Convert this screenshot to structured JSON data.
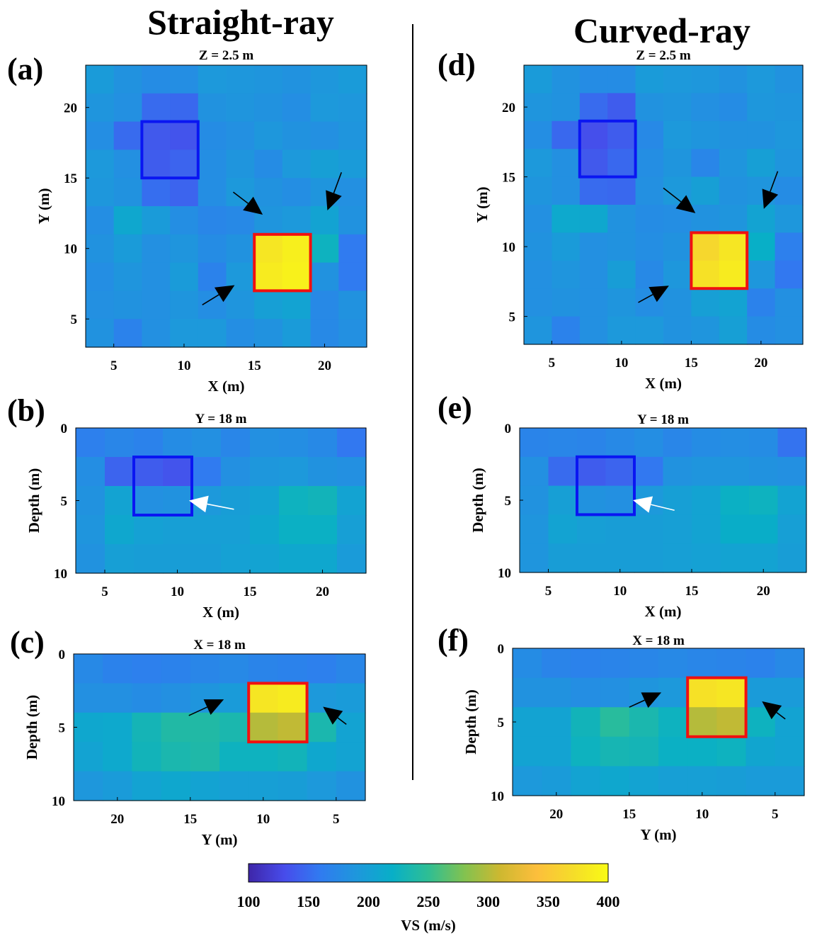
{
  "column_titles": {
    "left": "Straight-ray",
    "right": "Curved-ray"
  },
  "colorbar": {
    "label": "VS (m/s)",
    "min": 100,
    "max": 400,
    "ticks": [
      "100",
      "150",
      "200",
      "250",
      "300",
      "350",
      "400"
    ],
    "colormap": "parula"
  },
  "chart_data": [
    {
      "id": "a",
      "panel_label": "(a)",
      "type": "heatmap",
      "title": "Z =  2.5 m",
      "xlabel": "X (m)",
      "ylabel": "Y (m)",
      "xlim": [
        3,
        23
      ],
      "ylim": [
        3,
        23
      ],
      "y_reversed": false,
      "xticks": [
        5,
        10,
        15,
        20
      ],
      "yticks": [
        5,
        10,
        15,
        20
      ],
      "x_edges": [
        3,
        5,
        7,
        9,
        11,
        13,
        15,
        17,
        19,
        21,
        23
      ],
      "y_edges": [
        23,
        21,
        19,
        17,
        15,
        13,
        11,
        9,
        7,
        5,
        3
      ],
      "values": [
        [
          195,
          185,
          178,
          180,
          192,
          190,
          188,
          185,
          190,
          195
        ],
        [
          188,
          182,
          150,
          148,
          185,
          188,
          185,
          180,
          192,
          190
        ],
        [
          180,
          150,
          138,
          135,
          178,
          182,
          190,
          185,
          182,
          188
        ],
        [
          192,
          182,
          140,
          145,
          180,
          188,
          178,
          192,
          200,
          195
        ],
        [
          190,
          185,
          152,
          145,
          180,
          192,
          185,
          180,
          188,
          182
        ],
        [
          180,
          210,
          195,
          180,
          172,
          175,
          188,
          192,
          205,
          185
        ],
        [
          185,
          195,
          182,
          188,
          178,
          185,
          380,
          388,
          225,
          160
        ],
        [
          180,
          188,
          182,
          195,
          168,
          192,
          385,
          390,
          185,
          160
        ],
        [
          182,
          185,
          182,
          188,
          180,
          188,
          200,
          205,
          175,
          185
        ],
        [
          185,
          168,
          182,
          192,
          192,
          180,
          185,
          195,
          175,
          182
        ]
      ],
      "boxes": [
        {
          "color": "#0a16f2",
          "x": [
            7,
            11
          ],
          "y": [
            15,
            19
          ]
        },
        {
          "color": "#f01010",
          "x": [
            15,
            19
          ],
          "y": [
            7,
            11
          ]
        }
      ],
      "arrows": [
        {
          "color": "#000000",
          "from": [
            13.5,
            14.0
          ],
          "to": [
            15.6,
            12.4
          ]
        },
        {
          "color": "#000000",
          "from": [
            21.2,
            15.4
          ],
          "to": [
            20.2,
            12.7
          ]
        },
        {
          "color": "#000000",
          "from": [
            11.3,
            6.0
          ],
          "to": [
            13.6,
            7.4
          ]
        }
      ]
    },
    {
      "id": "b",
      "panel_label": "(b)",
      "type": "heatmap",
      "title": "Y = 18 m",
      "xlabel": "X (m)",
      "ylabel": "Depth (m)",
      "xlim": [
        3,
        23
      ],
      "ylim": [
        0,
        10
      ],
      "y_reversed": true,
      "xticks": [
        5,
        10,
        15,
        20
      ],
      "yticks": [
        0,
        5,
        10
      ],
      "x_edges": [
        3,
        5,
        7,
        9,
        11,
        13,
        15,
        17,
        19,
        21,
        23
      ],
      "y_edges": [
        0,
        2,
        4,
        6,
        8,
        10
      ],
      "values": [
        [
          165,
          172,
          168,
          178,
          182,
          172,
          182,
          180,
          175,
          158
        ],
        [
          180,
          145,
          140,
          135,
          160,
          182,
          190,
          192,
          185,
          182
        ],
        [
          185,
          205,
          182,
          185,
          192,
          198,
          205,
          225,
          228,
          205
        ],
        [
          188,
          210,
          202,
          200,
          200,
          200,
          210,
          222,
          222,
          200
        ],
        [
          185,
          200,
          198,
          198,
          198,
          202,
          205,
          210,
          210,
          195
        ]
      ],
      "boxes": [
        {
          "color": "#0a16f2",
          "x": [
            7,
            11
          ],
          "y": [
            2,
            6
          ]
        }
      ],
      "arrows": [
        {
          "color": "#ffffff",
          "from": [
            13.9,
            5.6
          ],
          "to": [
            10.8,
            5.0
          ]
        }
      ]
    },
    {
      "id": "c",
      "panel_label": "(c)",
      "type": "heatmap",
      "title": "X = 18 m",
      "xlabel": "Y (m)",
      "ylabel": "Depth (m)",
      "xlim": [
        23,
        3
      ],
      "ylim": [
        0,
        10
      ],
      "y_reversed": true,
      "xticks": [
        20,
        15,
        10,
        5
      ],
      "yticks": [
        0,
        5,
        10
      ],
      "x_edges": [
        23,
        21,
        19,
        17,
        15,
        13,
        11,
        9,
        7,
        5,
        3
      ],
      "y_edges": [
        0,
        2,
        4,
        6,
        8,
        10
      ],
      "values": [
        [
          175,
          168,
          165,
          168,
          172,
          175,
          170,
          168,
          165,
          172
        ],
        [
          182,
          182,
          178,
          182,
          188,
          195,
          380,
          385,
          192,
          195
        ],
        [
          210,
          212,
          230,
          240,
          240,
          235,
          300,
          305,
          235,
          205
        ],
        [
          205,
          212,
          228,
          235,
          238,
          225,
          225,
          228,
          210,
          205
        ],
        [
          190,
          195,
          205,
          210,
          205,
          200,
          200,
          198,
          192,
          185
        ]
      ],
      "boxes": [
        {
          "color": "#f01010",
          "x": [
            11,
            7
          ],
          "y": [
            2,
            6
          ]
        }
      ],
      "arrows": [
        {
          "color": "#000000",
          "from": [
            15.1,
            4.2
          ],
          "to": [
            12.7,
            3.1
          ]
        },
        {
          "color": "#000000",
          "from": [
            4.3,
            4.8
          ],
          "to": [
            5.9,
            3.6
          ]
        }
      ]
    },
    {
      "id": "d",
      "panel_label": "(d)",
      "type": "heatmap",
      "title": "Z = 2.5 m",
      "xlabel": "X (m)",
      "ylabel": "Y (m)",
      "xlim": [
        3,
        23
      ],
      "ylim": [
        3,
        23
      ],
      "y_reversed": false,
      "xticks": [
        5,
        10,
        15,
        20
      ],
      "yticks": [
        5,
        10,
        15,
        20
      ],
      "x_edges": [
        3,
        5,
        7,
        9,
        11,
        13,
        15,
        17,
        19,
        21,
        23
      ],
      "y_edges": [
        23,
        21,
        19,
        17,
        15,
        13,
        11,
        9,
        7,
        5,
        3
      ],
      "values": [
        [
          195,
          185,
          178,
          178,
          195,
          192,
          190,
          185,
          192,
          185
        ],
        [
          188,
          185,
          150,
          140,
          185,
          188,
          182,
          178,
          190,
          188
        ],
        [
          180,
          148,
          132,
          140,
          175,
          192,
          188,
          185,
          185,
          190
        ],
        [
          192,
          182,
          138,
          148,
          180,
          188,
          172,
          188,
          200,
          188
        ],
        [
          188,
          182,
          150,
          148,
          182,
          192,
          200,
          185,
          188,
          178
        ],
        [
          182,
          212,
          210,
          185,
          178,
          180,
          185,
          188,
          205,
          190
        ],
        [
          185,
          195,
          182,
          185,
          180,
          185,
          365,
          380,
          220,
          165
        ],
        [
          182,
          188,
          182,
          198,
          175,
          190,
          375,
          385,
          190,
          158
        ],
        [
          182,
          185,
          182,
          188,
          180,
          185,
          200,
          205,
          168,
          182
        ],
        [
          188,
          168,
          182,
          192,
          192,
          185,
          188,
          200,
          178,
          182
        ]
      ],
      "boxes": [
        {
          "color": "#0a16f2",
          "x": [
            7,
            11
          ],
          "y": [
            15,
            19
          ]
        },
        {
          "color": "#f01010",
          "x": [
            15,
            19
          ],
          "y": [
            7,
            11
          ]
        }
      ],
      "arrows": [
        {
          "color": "#000000",
          "from": [
            13.0,
            14.2
          ],
          "to": [
            15.3,
            12.4
          ]
        },
        {
          "color": "#000000",
          "from": [
            21.2,
            15.4
          ],
          "to": [
            20.2,
            12.7
          ]
        },
        {
          "color": "#000000",
          "from": [
            11.2,
            6.0
          ],
          "to": [
            13.4,
            7.2
          ]
        }
      ]
    },
    {
      "id": "e",
      "panel_label": "(e)",
      "type": "heatmap",
      "title": "Y = 18 m",
      "xlabel": "X (m)",
      "ylabel": "Depth (m)",
      "xlim": [
        3,
        23
      ],
      "ylim": [
        0,
        10
      ],
      "y_reversed": true,
      "xticks": [
        5,
        10,
        15,
        20
      ],
      "yticks": [
        0,
        5,
        10
      ],
      "x_edges": [
        3,
        5,
        7,
        9,
        11,
        13,
        15,
        17,
        19,
        21,
        23
      ],
      "y_edges": [
        0,
        2,
        4,
        6,
        8,
        10
      ],
      "values": [
        [
          170,
          172,
          170,
          175,
          180,
          172,
          178,
          180,
          178,
          155
        ],
        [
          182,
          150,
          140,
          145,
          158,
          185,
          188,
          188,
          185,
          182
        ],
        [
          185,
          200,
          185,
          182,
          192,
          200,
          205,
          222,
          225,
          205
        ],
        [
          188,
          205,
          200,
          198,
          198,
          200,
          205,
          218,
          218,
          200
        ],
        [
          188,
          198,
          198,
          198,
          198,
          200,
          202,
          205,
          205,
          198
        ]
      ],
      "boxes": [
        {
          "color": "#0a16f2",
          "x": [
            7,
            11
          ],
          "y": [
            2,
            6
          ]
        }
      ],
      "arrows": [
        {
          "color": "#ffffff",
          "from": [
            13.8,
            5.7
          ],
          "to": [
            10.9,
            5.0
          ]
        }
      ]
    },
    {
      "id": "f",
      "panel_label": "(f)",
      "type": "heatmap",
      "title": "X = 18 m",
      "xlabel": "Y (m)",
      "ylabel": "Depth (m)",
      "xlim": [
        23,
        3
      ],
      "ylim": [
        0,
        10
      ],
      "y_reversed": true,
      "xticks": [
        20,
        15,
        10,
        5
      ],
      "yticks": [
        0,
        5,
        10
      ],
      "x_edges": [
        23,
        21,
        19,
        17,
        15,
        13,
        11,
        9,
        7,
        5,
        3
      ],
      "y_edges": [
        0,
        2,
        4,
        6,
        8,
        10
      ],
      "values": [
        [
          178,
          170,
          168,
          170,
          172,
          175,
          172,
          170,
          168,
          175
        ],
        [
          185,
          185,
          180,
          182,
          188,
          192,
          375,
          380,
          195,
          195
        ],
        [
          205,
          205,
          228,
          245,
          235,
          225,
          300,
          305,
          225,
          205
        ],
        [
          205,
          205,
          225,
          232,
          230,
          222,
          222,
          225,
          208,
          205
        ],
        [
          192,
          195,
          205,
          210,
          205,
          200,
          200,
          198,
          195,
          195
        ]
      ],
      "boxes": [
        {
          "color": "#f01010",
          "x": [
            11,
            7
          ],
          "y": [
            2,
            6
          ]
        }
      ],
      "arrows": [
        {
          "color": "#000000",
          "from": [
            15.0,
            4.0
          ],
          "to": [
            12.8,
            3.0
          ]
        },
        {
          "color": "#000000",
          "from": [
            4.3,
            4.8
          ],
          "to": [
            5.9,
            3.6
          ]
        }
      ]
    }
  ]
}
